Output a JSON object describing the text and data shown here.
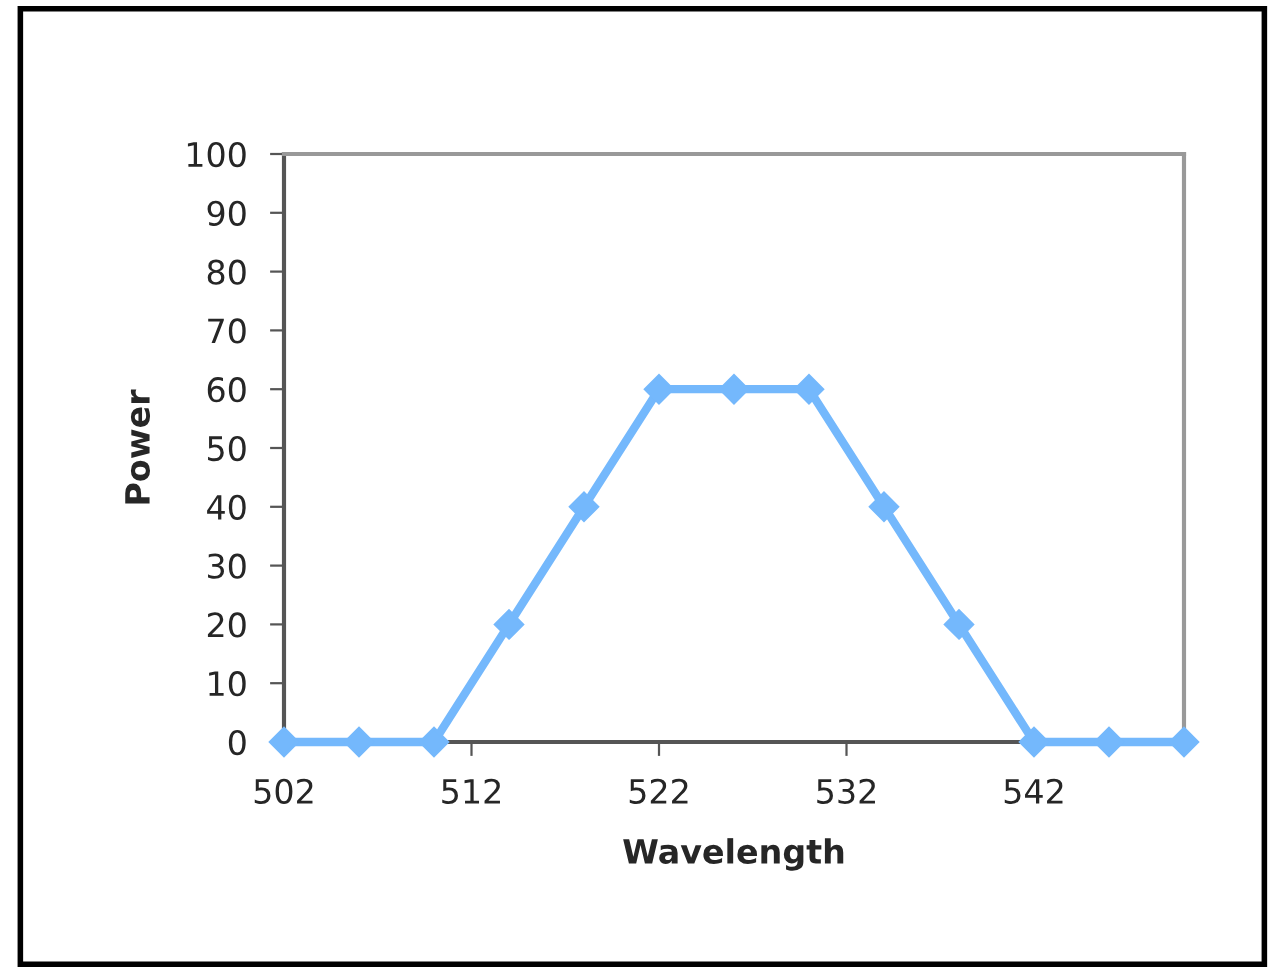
{
  "chart_data": {
    "type": "line",
    "xlabel": "Wavelength",
    "ylabel": "Power",
    "x": [
      502,
      506,
      510,
      514,
      518,
      522,
      526,
      530,
      534,
      538,
      542,
      546,
      550
    ],
    "series": [
      {
        "color": "#74b8fc",
        "values": [
          0,
          0,
          0,
          20,
          40,
          60,
          60,
          60,
          40,
          20,
          0,
          0,
          0
        ]
      }
    ],
    "xlim": [
      502,
      550
    ],
    "xticks": [
      502,
      512,
      522,
      532,
      542
    ],
    "ylim": [
      0,
      100
    ],
    "yticks": [
      0,
      10,
      20,
      30,
      40,
      50,
      60,
      70,
      80,
      90,
      100
    ],
    "marker": "diamond",
    "line_style": "solid",
    "grid": false,
    "legend": false
  }
}
